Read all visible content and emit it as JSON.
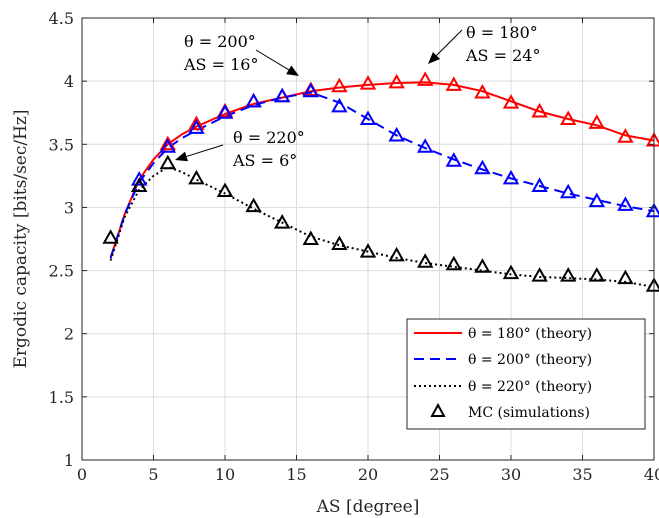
{
  "chart_data": {
    "type": "line",
    "title": "",
    "xlabel": "AS [degree]",
    "ylabel": "Ergodic capacity [bits/sec/Hz]",
    "xlim": [
      0,
      40
    ],
    "ylim": [
      1,
      4.5
    ],
    "xticks": [
      "0",
      "5",
      "10",
      "15",
      "20",
      "25",
      "30",
      "35",
      "40"
    ],
    "yticks": [
      "1",
      "1.5",
      "2",
      "2.5",
      "3",
      "3.5",
      "4",
      "4.5"
    ],
    "grid": true,
    "legend_position": "bottom-right",
    "series": [
      {
        "name": "θ = 180° (theory)",
        "color": "#ff0000",
        "line_style": "solid",
        "x": [
          2,
          3,
          4,
          5,
          6,
          7,
          8,
          10,
          12,
          14,
          16,
          18,
          20,
          22,
          24,
          26,
          28,
          30,
          32,
          34,
          36,
          38,
          40
        ],
        "y": [
          2.6,
          2.95,
          3.22,
          3.38,
          3.5,
          3.58,
          3.64,
          3.74,
          3.82,
          3.87,
          3.92,
          3.95,
          3.97,
          3.985,
          3.99,
          3.97,
          3.92,
          3.84,
          3.76,
          3.7,
          3.65,
          3.57,
          3.53
        ]
      },
      {
        "name": "θ = 200° (theory)",
        "color": "#0000ff",
        "line_style": "dashed",
        "x": [
          2,
          3,
          4,
          5,
          6,
          7,
          8,
          10,
          12,
          14,
          16,
          18,
          20,
          22,
          24,
          26,
          28,
          30,
          32,
          34,
          36,
          38,
          40
        ],
        "y": [
          2.6,
          2.95,
          3.2,
          3.35,
          3.47,
          3.55,
          3.61,
          3.72,
          3.81,
          3.87,
          3.91,
          3.83,
          3.7,
          3.57,
          3.47,
          3.38,
          3.3,
          3.23,
          3.17,
          3.11,
          3.06,
          3.01,
          2.97
        ]
      },
      {
        "name": "θ = 220° (theory)",
        "color": "#000000",
        "line_style": "dotted",
        "x": [
          2,
          3,
          4,
          5,
          6,
          7,
          8,
          10,
          12,
          14,
          16,
          18,
          20,
          22,
          24,
          26,
          28,
          30,
          32,
          34,
          36,
          38,
          40
        ],
        "y": [
          2.58,
          2.93,
          3.14,
          3.25,
          3.32,
          3.28,
          3.22,
          3.11,
          2.99,
          2.88,
          2.77,
          2.7,
          2.65,
          2.6,
          2.56,
          2.53,
          2.5,
          2.47,
          2.45,
          2.44,
          2.43,
          2.41,
          2.37
        ]
      },
      {
        "name": "MC (simulations)",
        "color": "#000000",
        "marker": "triangle",
        "groups": [
          {
            "color": "#ff0000",
            "x": [
              6,
              8,
              10,
              12,
              14,
              16,
              18,
              20,
              22,
              24,
              26,
              28,
              30,
              32,
              34,
              36,
              38,
              40
            ],
            "y": [
              3.5,
              3.66,
              3.76,
              3.84,
              3.88,
              3.93,
              3.96,
              3.98,
              3.99,
              4.01,
              3.97,
              3.91,
              3.83,
              3.76,
              3.7,
              3.67,
              3.56,
              3.53
            ]
          },
          {
            "color": "#0000ff",
            "x": [
              4,
              6,
              8,
              10,
              12,
              14,
              16,
              18,
              20,
              22,
              24,
              26,
              28,
              30,
              32,
              34,
              36,
              38,
              40
            ],
            "y": [
              3.22,
              3.48,
              3.63,
              3.75,
              3.84,
              3.88,
              3.92,
              3.8,
              3.7,
              3.57,
              3.48,
              3.37,
              3.31,
              3.23,
              3.17,
              3.12,
              3.05,
              3.02,
              2.97
            ]
          },
          {
            "color": "#000000",
            "x": [
              2,
              4,
              6,
              8,
              10,
              12,
              14,
              16,
              18,
              20,
              22,
              24,
              26,
              28,
              30,
              32,
              34,
              36,
              38,
              40
            ],
            "y": [
              2.76,
              3.17,
              3.35,
              3.23,
              3.13,
              3.01,
              2.88,
              2.75,
              2.71,
              2.65,
              2.62,
              2.57,
              2.55,
              2.53,
              2.48,
              2.46,
              2.46,
              2.46,
              2.44,
              2.38
            ]
          }
        ]
      }
    ],
    "annotations": [
      {
        "line1": "θ = 200°",
        "line2": "AS = 16°",
        "target": [
          16,
          3.92
        ]
      },
      {
        "line1": "θ = 180°",
        "line2": "AS = 24°",
        "target": [
          24,
          4.01
        ]
      },
      {
        "line1": "θ = 220°",
        "line2": "AS = 6°",
        "target": [
          6,
          3.35
        ]
      }
    ]
  }
}
